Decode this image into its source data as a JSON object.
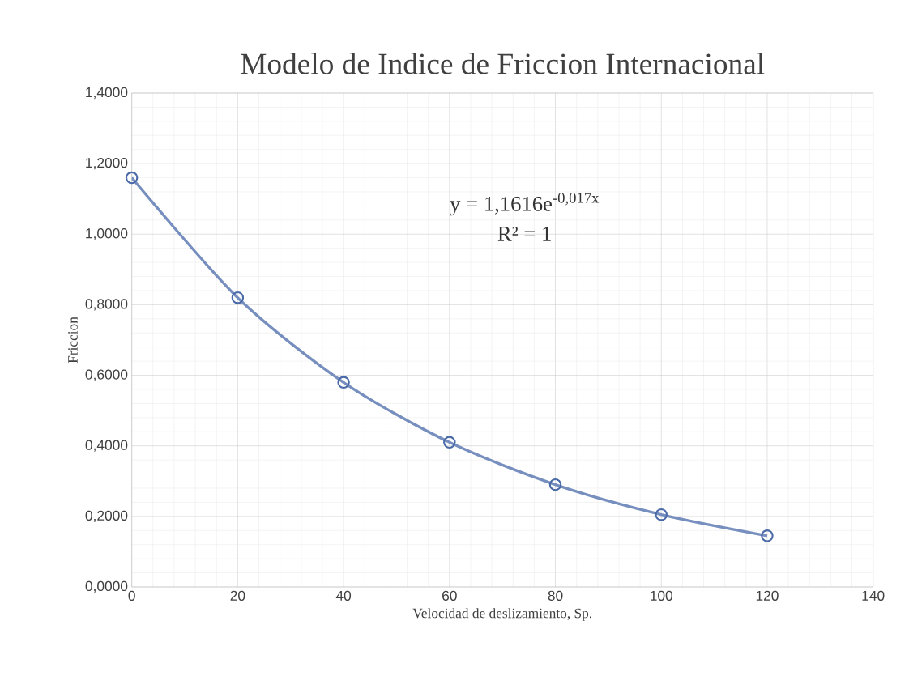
{
  "chart_data": {
    "type": "line",
    "title": "Modelo de Indice de Friccion Internacional",
    "xlabel": "Velocidad de deslizamiento, Sp.",
    "ylabel": "Friccion",
    "x": [
      0,
      20,
      40,
      60,
      80,
      100,
      120
    ],
    "series": [
      {
        "color": "#4a6aa8",
        "values": [
          1.16,
          0.82,
          0.58,
          0.41,
          0.29,
          0.205,
          0.145
        ]
      }
    ],
    "xlim": [
      0,
      140
    ],
    "xticks": [
      0,
      20,
      40,
      60,
      80,
      100,
      120,
      140
    ],
    "ylim": [
      0,
      1.4
    ],
    "yticks": [
      {
        "value": 0,
        "label": "0,0000"
      },
      {
        "value": 0.2,
        "label": "0,2000"
      },
      {
        "value": 0.4,
        "label": "0,4000"
      },
      {
        "value": 0.6,
        "label": "0,6000"
      },
      {
        "value": 0.8,
        "label": "0,8000"
      },
      {
        "value": 1.0,
        "label": "1,0000"
      },
      {
        "value": 1.2,
        "label": "1,2000"
      },
      {
        "value": 1.4,
        "label": "1,4000"
      }
    ],
    "annotations": [
      "y = 1,1616e$^{-0,017x}$",
      "R² = 1"
    ],
    "grid": true,
    "marker": "circle",
    "line_style": "solid"
  }
}
